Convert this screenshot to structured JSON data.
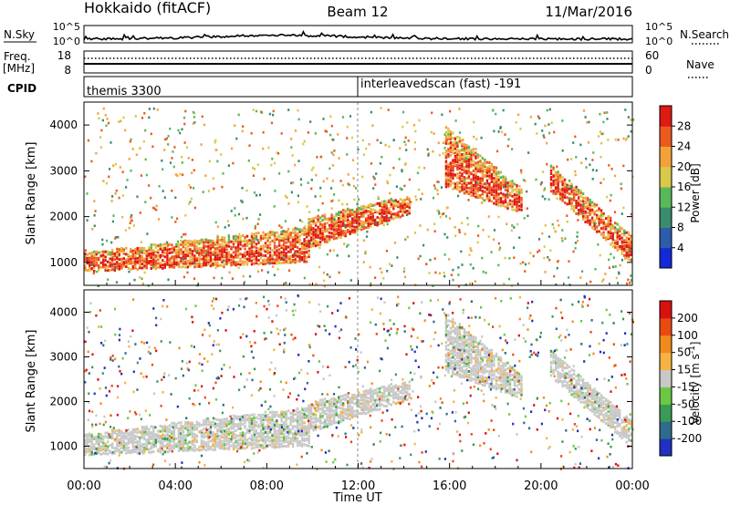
{
  "header": {
    "title_left": "Hokkaido (fitACF)",
    "title_center": "Beam 12",
    "title_right": "11/Mar/2016"
  },
  "nsky_panel": {
    "label": "N.Sky",
    "right_label": "N.Search",
    "ticks": [
      "10^5",
      "10^0"
    ]
  },
  "freq_panel": {
    "label_line1": "Freq.",
    "label_line2": "[MHz]",
    "left_ticks": [
      "18",
      "8"
    ],
    "right_ticks": [
      "60",
      "0"
    ],
    "right_label": "Nave"
  },
  "cpid_panel": {
    "label": "CPID",
    "programs": [
      {
        "name": "themis 3300",
        "start": "00:00"
      },
      {
        "name": "interleavedscan (fast) -191",
        "start": "12:00"
      }
    ]
  },
  "chart_data": [
    {
      "type": "heatmap",
      "title": "",
      "quantity": "Power",
      "ylabel": "Slant Range [km]",
      "xlabel": "Time UT",
      "ylim": [
        500,
        4500
      ],
      "yticks": [
        1000,
        2000,
        3000,
        4000
      ],
      "x_ticks": [
        "00:00",
        "04:00",
        "08:00",
        "12:00",
        "16:00",
        "20:00",
        "00:00"
      ],
      "colorbar": {
        "label": "Power [dB]",
        "ticks": [
          4,
          8,
          12,
          16,
          20,
          24,
          28
        ],
        "colors": [
          "#1428d8",
          "#2c5caa",
          "#3a8c6c",
          "#58b85a",
          "#d9c94a",
          "#f3a23a",
          "#ec5a1e",
          "#de1a12"
        ]
      },
      "echo_bands": [
        {
          "t_start": 0.0,
          "t_end": 9.8,
          "range_lower": [
            850,
            1050
          ],
          "range_upper": [
            1250,
            1800
          ],
          "power_db": [
            24,
            29
          ]
        },
        {
          "t_start": 9.8,
          "t_end": 14.2,
          "range_lower": [
            1350,
            2100
          ],
          "range_upper": [
            2000,
            2500
          ],
          "power_db": [
            20,
            28
          ]
        },
        {
          "t_start": 15.8,
          "t_end": 19.2,
          "range_lower": [
            2700,
            2100
          ],
          "range_upper": [
            4000,
            2600
          ],
          "power_db": [
            20,
            28
          ]
        },
        {
          "t_start": 20.4,
          "t_end": 24.0,
          "range_lower": [
            2600,
            1000
          ],
          "range_upper": [
            3200,
            1600
          ],
          "power_db": [
            20,
            28
          ]
        }
      ]
    },
    {
      "type": "heatmap",
      "title": "",
      "quantity": "Velocity",
      "ylabel": "Slant Range [km]",
      "xlabel": "Time UT",
      "ylim": [
        500,
        4500
      ],
      "yticks": [
        1000,
        2000,
        3000,
        4000
      ],
      "x_ticks": [
        "00:00",
        "04:00",
        "08:00",
        "12:00",
        "16:00",
        "20:00",
        "00:00"
      ],
      "colorbar": {
        "label": "Velocity [m s^-1]",
        "ticks": [
          200,
          100,
          50,
          15,
          -15,
          -50,
          -100,
          -200
        ],
        "colors": [
          "#2030c0",
          "#2f6b8a",
          "#3b9a55",
          "#6cc744",
          "#c8c8c8",
          "#f5b342",
          "#f08a1e",
          "#ea4a12",
          "#d91010"
        ]
      },
      "ground_scatter_color": "#c8c8c8",
      "echo_bands": [
        {
          "t_start": 0.0,
          "t_end": 9.8,
          "range_lower": [
            850,
            1050
          ],
          "range_upper": [
            1300,
            1900
          ],
          "velocity": [
            -15,
            15
          ]
        },
        {
          "t_start": 9.8,
          "t_end": 14.2,
          "range_lower": [
            1350,
            2100
          ],
          "range_upper": [
            2000,
            2500
          ],
          "velocity": [
            -15,
            15
          ]
        },
        {
          "t_start": 15.8,
          "t_end": 19.2,
          "range_lower": [
            2700,
            2100
          ],
          "range_upper": [
            4000,
            2600
          ],
          "velocity": [
            -15,
            15
          ]
        },
        {
          "t_start": 20.4,
          "t_end": 24.0,
          "range_lower": [
            2600,
            1000
          ],
          "range_upper": [
            3200,
            1600
          ],
          "velocity": [
            -15,
            15
          ]
        }
      ]
    }
  ]
}
